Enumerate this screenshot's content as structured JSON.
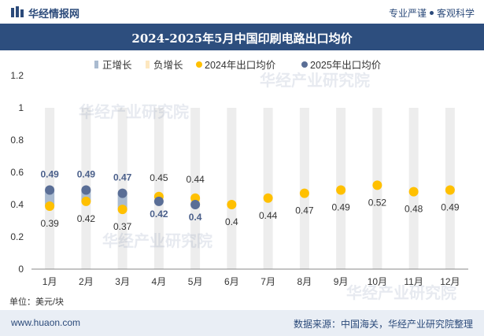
{
  "header": {
    "brand": "华经情报网",
    "tagline_left": "专业严谨",
    "tagline_right": "客观科学"
  },
  "title": "2024-2025年5月中国印刷电路出口均价",
  "unit_label": "单位：美元/块",
  "footer": {
    "site": "www.huaon.com",
    "source": "数据来源：中国海关，华经产业研究院整理"
  },
  "watermark": "华经产业研究院",
  "colors": {
    "positive": "#aabbd0",
    "negative": "#fde7c0",
    "series2024": "#ffc000",
    "series2025": "#5a6e96",
    "label2025": "#4a5f8a",
    "bar_bg": "#ededed",
    "title_bg": "#2d4e7e"
  },
  "chart_data": {
    "type": "scatter",
    "categories": [
      "1月",
      "2月",
      "3月",
      "4月",
      "5月",
      "6月",
      "7月",
      "8月",
      "9月",
      "10月",
      "11月",
      "12月"
    ],
    "ylim": [
      0,
      1.2
    ],
    "yticks": [
      "0",
      "0.2",
      "0.4",
      "0.6",
      "0.8",
      "1",
      "1.2"
    ],
    "legend": [
      "正增长",
      "负增长",
      "2024年出口均价",
      "2025年出口均价"
    ],
    "legend_position": "top",
    "series": [
      {
        "name": "2024年出口均价",
        "values": [
          0.39,
          0.42,
          0.37,
          0.45,
          0.44,
          0.4,
          0.44,
          0.47,
          0.49,
          0.52,
          0.48,
          0.49
        ],
        "labels": [
          "0.39",
          "0.42",
          "0.37",
          "0.45",
          "0.44",
          "0.4",
          "0.44",
          "0.47",
          "0.49",
          "0.52",
          "0.48",
          "0.49"
        ]
      },
      {
        "name": "2025年出口均价",
        "values": [
          0.49,
          0.49,
          0.47,
          0.42,
          0.4
        ],
        "labels": [
          "0.49",
          "0.49",
          "0.47",
          "0.42",
          "0.4"
        ]
      }
    ],
    "growth": [
      "positive",
      "positive",
      "positive",
      "negative",
      "negative"
    ]
  }
}
